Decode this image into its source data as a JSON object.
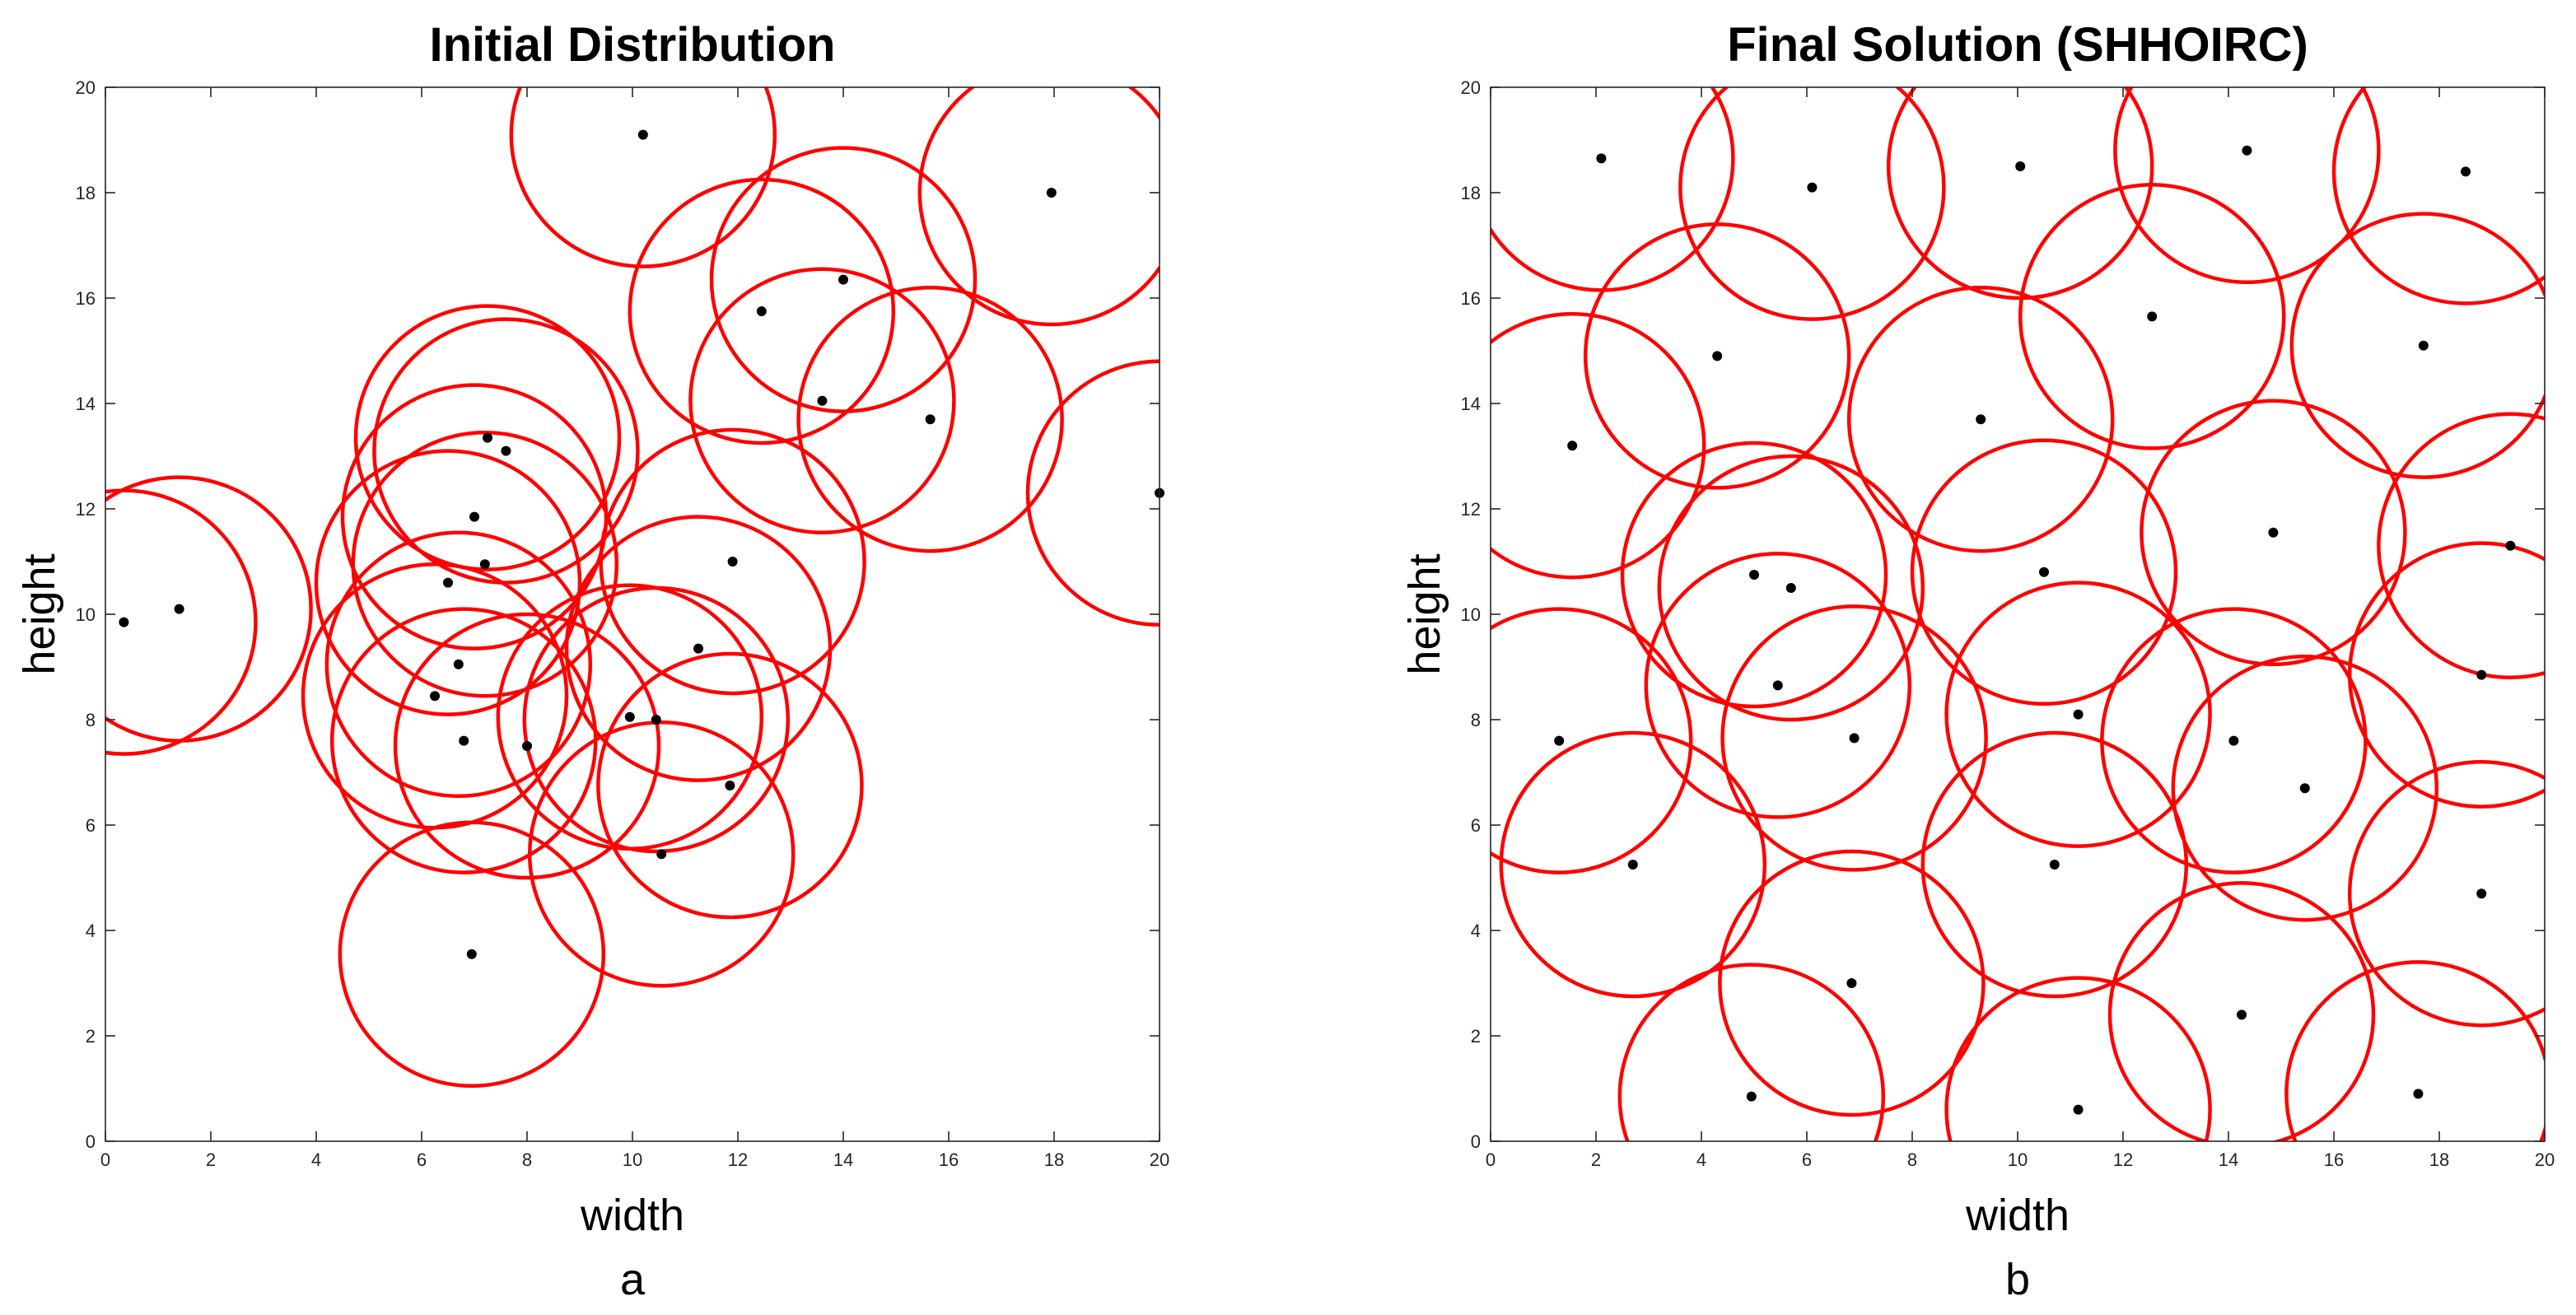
{
  "chart_data": [
    {
      "type": "scatter",
      "title": "Initial Distribution",
      "xlabel": "width",
      "ylabel": "height",
      "subfigure_label": "a",
      "xlim": [
        0,
        20
      ],
      "ylim": [
        0,
        20
      ],
      "xticks": [
        0,
        2,
        4,
        6,
        8,
        10,
        12,
        14,
        16,
        18,
        20
      ],
      "yticks": [
        0,
        2,
        4,
        6,
        8,
        10,
        12,
        14,
        16,
        18,
        20
      ],
      "coverage_radius": 2.5,
      "circle_color": "#ff0000",
      "point_color": "#000000",
      "points": [
        [
          0.35,
          9.85
        ],
        [
          1.4,
          10.1
        ],
        [
          10.2,
          19.1
        ],
        [
          12.45,
          15.75
        ],
        [
          14.0,
          16.35
        ],
        [
          13.6,
          14.05
        ],
        [
          15.65,
          13.7
        ],
        [
          17.95,
          18.0
        ],
        [
          20.0,
          12.3
        ],
        [
          7.25,
          13.35
        ],
        [
          7.6,
          13.1
        ],
        [
          7.0,
          11.85
        ],
        [
          7.2,
          10.95
        ],
        [
          6.5,
          10.6
        ],
        [
          11.9,
          11.0
        ],
        [
          6.7,
          9.05
        ],
        [
          6.25,
          8.45
        ],
        [
          6.8,
          7.6
        ],
        [
          8.0,
          7.5
        ],
        [
          9.95,
          8.05
        ],
        [
          10.45,
          8.0
        ],
        [
          11.25,
          9.35
        ],
        [
          11.85,
          6.75
        ],
        [
          10.55,
          5.45
        ],
        [
          6.95,
          3.55
        ]
      ]
    },
    {
      "type": "scatter",
      "title": "Final Solution (SHHOIRC)",
      "xlabel": "width",
      "ylabel": "height",
      "subfigure_label": "b",
      "xlim": [
        0,
        20
      ],
      "ylim": [
        0,
        20
      ],
      "xticks": [
        0,
        2,
        4,
        6,
        8,
        10,
        12,
        14,
        16,
        18,
        20
      ],
      "yticks": [
        0,
        2,
        4,
        6,
        8,
        10,
        12,
        14,
        16,
        18,
        20
      ],
      "coverage_radius": 2.5,
      "circle_color": "#ff0000",
      "point_color": "#000000",
      "points": [
        [
          2.1,
          18.65
        ],
        [
          6.1,
          18.1
        ],
        [
          10.05,
          18.5
        ],
        [
          14.35,
          18.8
        ],
        [
          18.5,
          18.4
        ],
        [
          4.3,
          14.9
        ],
        [
          1.55,
          13.2
        ],
        [
          9.3,
          13.7
        ],
        [
          12.55,
          15.65
        ],
        [
          17.7,
          15.1
        ],
        [
          5.0,
          10.75
        ],
        [
          5.7,
          10.5
        ],
        [
          10.5,
          10.8
        ],
        [
          14.85,
          11.55
        ],
        [
          19.35,
          11.3
        ],
        [
          1.3,
          7.6
        ],
        [
          5.45,
          8.65
        ],
        [
          6.9,
          7.65
        ],
        [
          11.15,
          8.1
        ],
        [
          14.1,
          7.6
        ],
        [
          15.45,
          6.7
        ],
        [
          18.8,
          8.85
        ],
        [
          2.7,
          5.25
        ],
        [
          10.7,
          5.25
        ],
        [
          18.8,
          4.7
        ],
        [
          6.85,
          3.0
        ],
        [
          4.95,
          0.85
        ],
        [
          11.15,
          0.6
        ],
        [
          14.25,
          2.4
        ],
        [
          17.6,
          0.9
        ]
      ]
    }
  ]
}
